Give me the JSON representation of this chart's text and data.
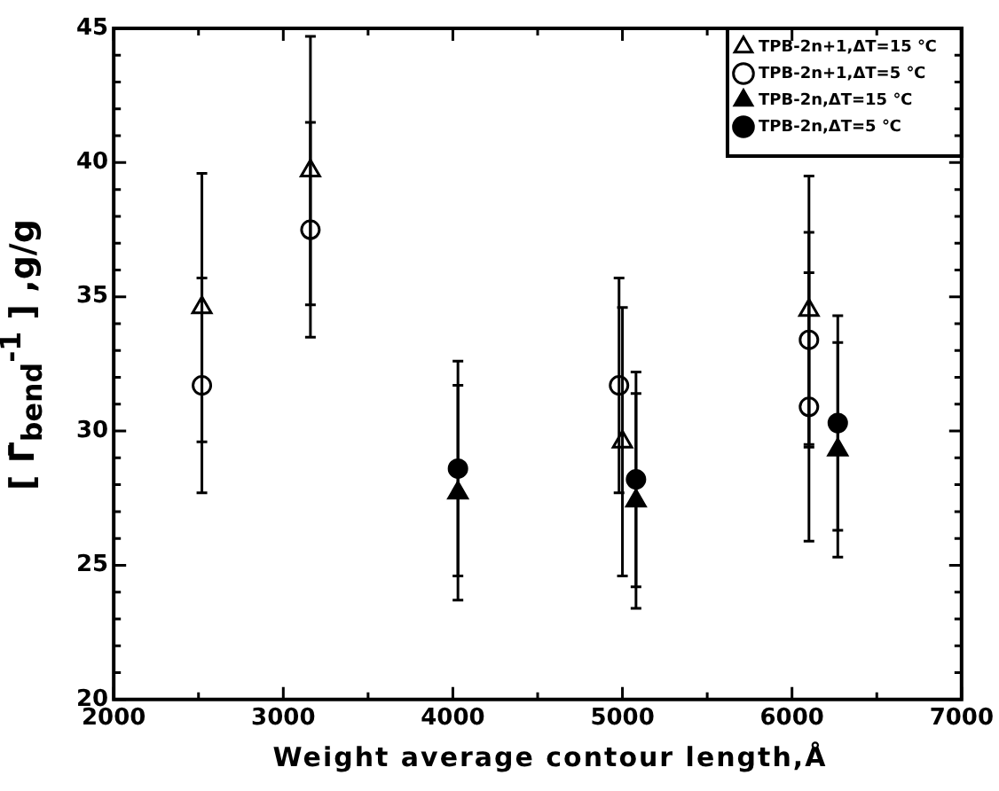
{
  "chart_data": {
    "type": "scatter",
    "xlabel": "Weight average contour length,Å",
    "ylabel": "[ Γ̄$_{bend}$$^{-1}$ ] ,g/g",
    "xlim": [
      2000,
      7000
    ],
    "xticks": [
      2000,
      {
        "value": 2500,
        "label": null
      },
      3000,
      {
        "value": 3500,
        "label": null
      },
      4000,
      {
        "value": 4500,
        "label": null
      },
      5000,
      {
        "value": 5500,
        "label": null
      },
      6000,
      {
        "value": 6500,
        "label": null
      },
      7000
    ],
    "ylim": [
      20,
      45
    ],
    "yticks": [
      20,
      {
        "value": 21,
        "label": null
      },
      {
        "value": 22,
        "label": null
      },
      {
        "value": 23,
        "label": null
      },
      {
        "value": 24,
        "label": null
      },
      25,
      {
        "value": 26,
        "label": null
      },
      {
        "value": 27,
        "label": null
      },
      {
        "value": 28,
        "label": null
      },
      {
        "value": 29,
        "label": null
      },
      30,
      {
        "value": 31,
        "label": null
      },
      {
        "value": 32,
        "label": null
      },
      {
        "value": 33,
        "label": null
      },
      {
        "value": 34,
        "label": null
      },
      35,
      {
        "value": 36,
        "label": null
      },
      {
        "value": 37,
        "label": null
      },
      {
        "value": 38,
        "label": null
      },
      {
        "value": 39,
        "label": null
      },
      40,
      {
        "value": 41,
        "label": null
      },
      {
        "value": 42,
        "label": null
      },
      {
        "value": 43,
        "label": null
      },
      {
        "value": 44,
        "label": null
      },
      45
    ],
    "grid": false,
    "legend": "top right",
    "series": [
      {
        "name": "TPB-2n+1,ΔT=15 ℃",
        "color": "#000000",
        "marker": "triangle-open",
        "x": [
          2520,
          3160,
          5000,
          6100
        ],
        "values": [
          34.6,
          39.7,
          29.6,
          34.5
        ],
        "errors": [
          5,
          5,
          5,
          5
        ]
      },
      {
        "name": "TPB-2n+1,ΔT=5 ℃",
        "color": "#000000",
        "marker": "circle-open",
        "x": [
          2520,
          3160,
          4980,
          6100,
          6100
        ],
        "values": [
          31.7,
          37.5,
          31.7,
          33.4,
          30.9
        ],
        "errors": [
          4,
          4,
          4,
          4,
          5
        ]
      },
      {
        "name": "TPB-2n,ΔT=15 ℃",
        "color": "#000000",
        "marker": "triangle",
        "x": [
          4030,
          5080,
          6270
        ],
        "values": [
          27.7,
          27.4,
          29.3
        ],
        "errors": [
          4,
          4,
          4
        ]
      },
      {
        "name": "TPB-2n,ΔT=5 ℃",
        "color": "#000000",
        "marker": "circle",
        "x": [
          4030,
          5080,
          6270
        ],
        "values": [
          28.6,
          28.2,
          30.3
        ],
        "errors": [
          4,
          4,
          4
        ]
      }
    ]
  }
}
